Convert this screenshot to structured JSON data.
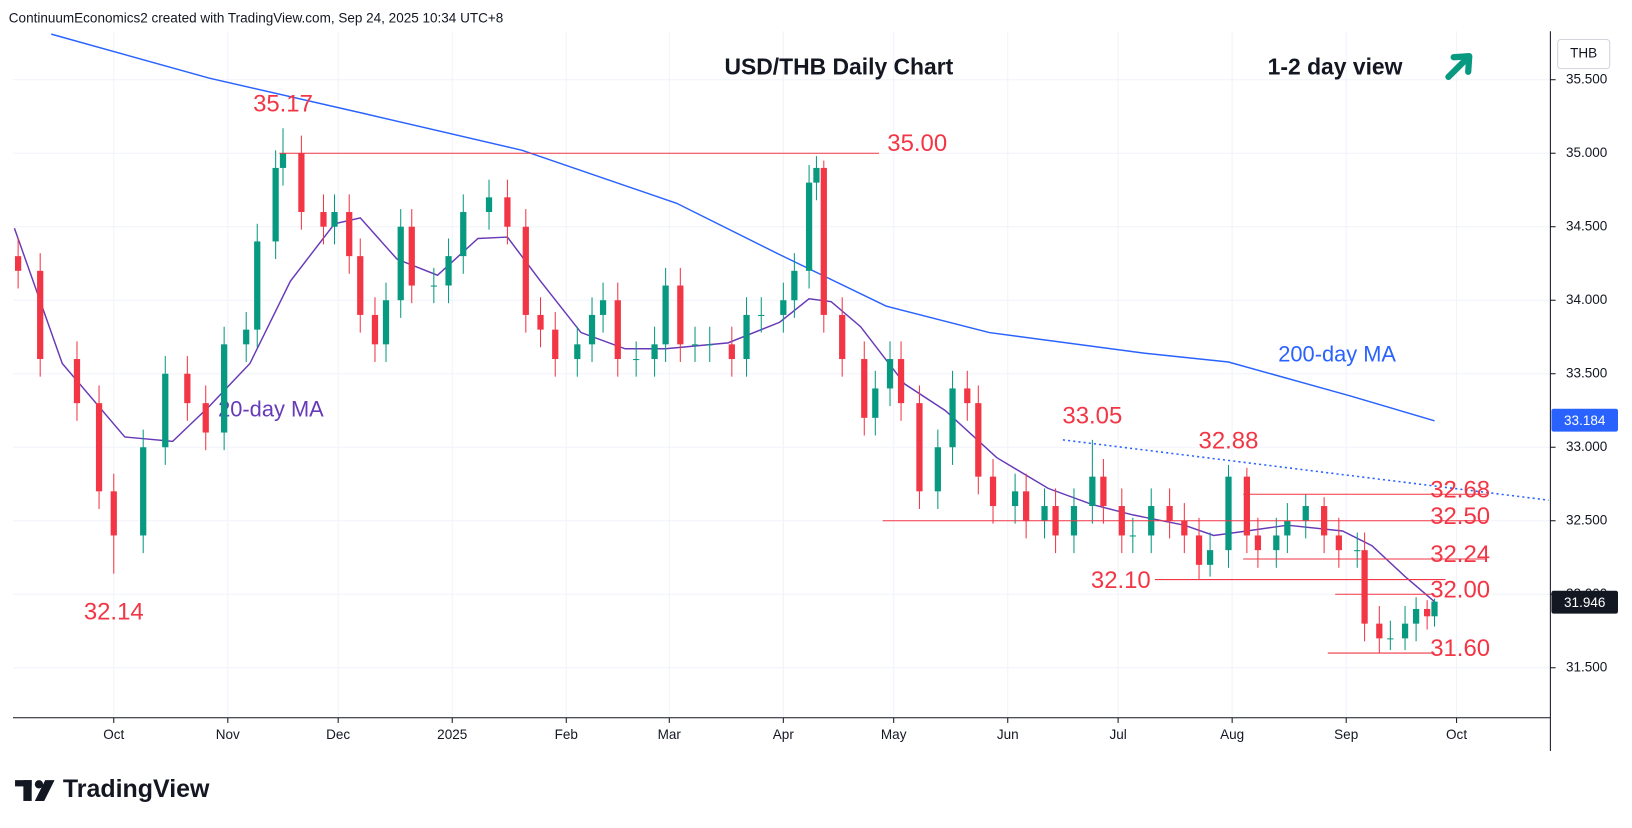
{
  "chart_data": {
    "type": "candlestick",
    "attribution": "ContinuumEconomics2 created with TradingView.com, Sep 24, 2025 10:34 UTC+8",
    "title": "USD/THB Daily Chart",
    "subtitle": "1-2 day view",
    "currency": "THB",
    "brand": "TradingView",
    "up_color": "#089981",
    "down_color": "#f23645",
    "xlim": [
      2.6,
      420.5
    ],
    "xticks": [
      {
        "value": 30,
        "label": "Oct"
      },
      {
        "value": 61,
        "label": "Nov"
      },
      {
        "value": 91,
        "label": "Dec"
      },
      {
        "value": 122,
        "label": "2025"
      },
      {
        "value": 153,
        "label": "Feb"
      },
      {
        "value": 181,
        "label": "Mar"
      },
      {
        "value": 212,
        "label": "Apr"
      },
      {
        "value": 242,
        "label": "May"
      },
      {
        "value": 273,
        "label": "Jun"
      },
      {
        "value": 303,
        "label": "Jul"
      },
      {
        "value": 334,
        "label": "Aug"
      },
      {
        "value": 365,
        "label": "Sep"
      },
      {
        "value": 395,
        "label": "Oct"
      }
    ],
    "ylim": [
      31.16,
      35.83
    ],
    "yticks": [
      {
        "value": 31.5,
        "label": "31.500"
      },
      {
        "value": 32,
        "label": "32.000"
      },
      {
        "value": 32.5,
        "label": "32.500"
      },
      {
        "value": 33,
        "label": "33.000"
      },
      {
        "value": 33.5,
        "label": "33.500"
      },
      {
        "value": 34,
        "label": "34.000"
      },
      {
        "value": 34.5,
        "label": "34.500"
      },
      {
        "value": 35,
        "label": "35.000"
      },
      {
        "value": 35.5,
        "label": "35.500"
      }
    ],
    "grid": true,
    "x": [
      4,
      10,
      20,
      26,
      30,
      38,
      44,
      50,
      55,
      60,
      66,
      69,
      74,
      76,
      81,
      87,
      90,
      94,
      97,
      101,
      104,
      108,
      111,
      117,
      121,
      125,
      132,
      137,
      142,
      146,
      150,
      156,
      160,
      163,
      167,
      172,
      177,
      180,
      184,
      188,
      192,
      198,
      202,
      206,
      212,
      215,
      219,
      221,
      223,
      228,
      234,
      237,
      241,
      244,
      249,
      254,
      258,
      262,
      265,
      269,
      275,
      278,
      283,
      286,
      291,
      296,
      299,
      304,
      307,
      312,
      317,
      321,
      325,
      328,
      333,
      338,
      341,
      346,
      349,
      354,
      359,
      363,
      368,
      370,
      374,
      377,
      381,
      384,
      387,
      389
    ],
    "open": [
      34.3,
      34.2,
      33.6,
      33.3,
      32.7,
      32.4,
      33.0,
      33.5,
      33.3,
      33.1,
      33.7,
      33.8,
      34.4,
      34.9,
      35.0,
      34.6,
      34.5,
      34.6,
      34.3,
      33.9,
      33.7,
      34.0,
      34.5,
      34.1,
      34.1,
      34.3,
      34.6,
      34.7,
      34.5,
      33.9,
      33.8,
      33.6,
      33.7,
      33.9,
      34.0,
      33.6,
      33.6,
      33.7,
      34.1,
      33.7,
      33.7,
      33.7,
      33.6,
      33.9,
      33.9,
      34.0,
      34.2,
      34.8,
      34.9,
      33.9,
      33.6,
      33.2,
      33.4,
      33.6,
      33.3,
      32.7,
      33.0,
      33.4,
      33.3,
      32.8,
      32.6,
      32.7,
      32.5,
      32.6,
      32.4,
      32.6,
      32.8,
      32.6,
      32.4,
      32.4,
      32.6,
      32.5,
      32.4,
      32.2,
      32.3,
      32.8,
      32.4,
      32.3,
      32.4,
      32.5,
      32.6,
      32.4,
      32.3,
      32.3,
      31.8,
      31.7,
      31.7,
      31.8,
      31.9,
      31.85
    ],
    "high": [
      34.42,
      34.32,
      33.72,
      33.42,
      32.82,
      33.12,
      33.62,
      33.62,
      33.42,
      33.82,
      33.92,
      34.52,
      35.02,
      35.17,
      35.12,
      34.72,
      34.72,
      34.72,
      34.42,
      34.02,
      34.12,
      34.62,
      34.62,
      34.22,
      34.42,
      34.72,
      34.82,
      34.82,
      34.62,
      34.02,
      33.92,
      33.82,
      34.02,
      34.12,
      34.12,
      33.72,
      33.82,
      34.22,
      34.22,
      33.82,
      33.82,
      33.82,
      34.02,
      34.02,
      34.12,
      34.32,
      34.92,
      34.98,
      34.95,
      34.02,
      33.72,
      33.52,
      33.72,
      33.72,
      33.42,
      33.12,
      33.52,
      33.52,
      33.42,
      32.92,
      32.82,
      32.82,
      32.72,
      32.72,
      32.72,
      33.05,
      32.92,
      32.72,
      32.52,
      32.72,
      32.72,
      32.62,
      32.52,
      32.42,
      32.88,
      32.86,
      32.52,
      32.52,
      32.62,
      32.68,
      32.66,
      32.52,
      32.42,
      32.42,
      31.92,
      31.82,
      31.92,
      31.98,
      31.96,
      31.97
    ],
    "low": [
      34.08,
      33.48,
      33.18,
      32.58,
      32.14,
      32.28,
      32.88,
      33.18,
      32.98,
      32.98,
      33.58,
      33.68,
      34.28,
      34.78,
      34.48,
      34.38,
      34.38,
      34.18,
      33.78,
      33.58,
      33.58,
      33.88,
      33.98,
      33.98,
      33.98,
      34.18,
      34.48,
      34.38,
      33.78,
      33.68,
      33.48,
      33.48,
      33.58,
      33.78,
      33.48,
      33.48,
      33.48,
      33.58,
      33.58,
      33.58,
      33.58,
      33.48,
      33.48,
      33.78,
      33.78,
      33.88,
      34.08,
      34.68,
      33.78,
      33.48,
      33.08,
      33.08,
      33.28,
      33.18,
      32.58,
      32.58,
      32.88,
      33.18,
      32.68,
      32.48,
      32.48,
      32.38,
      32.38,
      32.28,
      32.28,
      32.48,
      32.48,
      32.28,
      32.28,
      32.28,
      32.38,
      32.28,
      32.1,
      32.12,
      32.18,
      32.28,
      32.18,
      32.18,
      32.28,
      32.38,
      32.28,
      32.18,
      32.18,
      31.68,
      31.6,
      31.62,
      31.62,
      31.68,
      31.76,
      31.78
    ],
    "close": [
      34.2,
      33.6,
      33.3,
      32.7,
      32.4,
      33.0,
      33.5,
      33.3,
      33.1,
      33.7,
      33.8,
      34.4,
      34.9,
      35.0,
      34.6,
      34.5,
      34.6,
      34.3,
      33.9,
      33.7,
      34.0,
      34.5,
      34.1,
      34.1,
      34.3,
      34.6,
      34.7,
      34.5,
      33.9,
      33.8,
      33.6,
      33.7,
      33.9,
      34.0,
      33.6,
      33.6,
      33.7,
      34.1,
      33.7,
      33.7,
      33.7,
      33.6,
      33.9,
      33.9,
      34.0,
      34.2,
      34.8,
      34.9,
      33.9,
      33.6,
      33.2,
      33.4,
      33.6,
      33.3,
      32.7,
      33.0,
      33.4,
      33.3,
      32.8,
      32.6,
      32.7,
      32.5,
      32.6,
      32.4,
      32.6,
      32.8,
      32.6,
      32.4,
      32.4,
      32.6,
      32.5,
      32.4,
      32.2,
      32.3,
      32.8,
      32.4,
      32.3,
      32.4,
      32.5,
      32.6,
      32.4,
      32.3,
      32.3,
      31.8,
      31.7,
      31.7,
      31.8,
      31.9,
      31.85,
      31.95
    ],
    "lines": [
      {
        "name": "200-day MA",
        "color": "#2962ff",
        "x": [
          13,
          56,
          98,
          141,
          183,
          211,
          240,
          268,
          310,
          333,
          366,
          389
        ],
        "values": [
          35.81,
          35.51,
          35.27,
          35.02,
          34.66,
          34.31,
          33.96,
          33.78,
          33.64,
          33.58,
          33.35,
          33.18
        ]
      },
      {
        "name": "20-day MA",
        "color": "#673ab7",
        "x": [
          3,
          16,
          33,
          46,
          56,
          67,
          78,
          90,
          97,
          107,
          118,
          129,
          137,
          146,
          157,
          169,
          180,
          197,
          211,
          219,
          225,
          233,
          245,
          256,
          270,
          284,
          296,
          307,
          321,
          329,
          338,
          349,
          364,
          372,
          381,
          389
        ],
        "values": [
          34.49,
          33.57,
          33.07,
          33.04,
          33.28,
          33.57,
          34.13,
          34.52,
          34.56,
          34.28,
          34.17,
          34.42,
          34.43,
          34.13,
          33.78,
          33.67,
          33.67,
          33.71,
          33.85,
          34.01,
          33.99,
          33.82,
          33.43,
          33.25,
          32.93,
          32.72,
          32.61,
          32.54,
          32.47,
          32.4,
          32.43,
          32.47,
          32.43,
          32.33,
          32.12,
          31.95
        ]
      }
    ],
    "levels": [
      {
        "value": 35.0,
        "label": "35.00",
        "x": [
          75,
          238
        ],
        "label_side": "right"
      },
      {
        "value": 32.68,
        "label": "32.68",
        "x": [
          337,
          403
        ],
        "label_side": "inside"
      },
      {
        "value": 32.5,
        "label": "32.50",
        "x": [
          239,
          403
        ],
        "label_side": "inside"
      },
      {
        "value": 32.24,
        "label": "32.24",
        "x": [
          337,
          403
        ],
        "label_side": "inside"
      },
      {
        "value": 32.1,
        "label": "32.10",
        "x": [
          313,
          392
        ],
        "label_side": "left"
      },
      {
        "value": 32.0,
        "label": "32.00",
        "x": [
          362,
          389
        ],
        "label_side": "inside"
      },
      {
        "value": 31.6,
        "label": "31.60",
        "x": [
          360,
          389
        ],
        "label_side": "inside"
      }
    ],
    "trendline": {
      "x": [
        288,
        420
      ],
      "values": [
        33.05,
        32.64
      ]
    },
    "annotations": [
      {
        "x": 76,
        "value": 35.17,
        "label": "35.17",
        "side": "above"
      },
      {
        "x": 30,
        "value": 32.14,
        "label": "32.14",
        "side": "below"
      },
      {
        "x": 296,
        "value": 33.05,
        "label": "33.05",
        "side": "above"
      },
      {
        "x": 333,
        "value": 32.88,
        "label": "32.88",
        "side": "above"
      }
    ],
    "price_labels": [
      {
        "value": 33.184,
        "label": "33.184",
        "color": "#2962ff"
      },
      {
        "value": 31.946,
        "label": "31.946",
        "color": "#131722"
      }
    ]
  }
}
